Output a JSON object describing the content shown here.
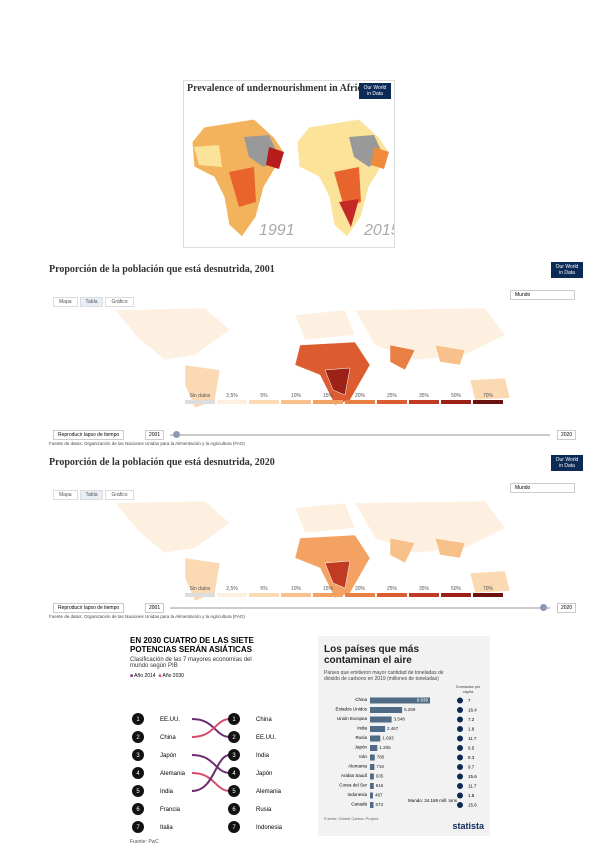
{
  "africa": {
    "title": "Prevalence of undernourishment in Africa",
    "logo": "Our World in Data",
    "years": [
      "1991",
      "2015"
    ]
  },
  "maps": [
    {
      "title": "Proporción de la población que está desnutrida, 2001",
      "logo": "Our World in Data",
      "tabs": [
        "Mapa",
        "Tabla",
        "Gráfico"
      ],
      "region": "Mundo",
      "legend": [
        "Sin datos",
        "2,5%",
        "5%",
        "10%",
        "15%",
        "20%",
        "25%",
        "35%",
        "50%",
        "70%"
      ],
      "play": "Reproducir lapso de tiempo",
      "start": "2001",
      "end": "2020",
      "source": "Fuente de datos: Organización de las Naciones Unidas para la Alimentación y la Agricultura (FAO)"
    },
    {
      "title": "Proporción de la población que está desnutrida, 2020",
      "logo": "Our World in Data",
      "tabs": [
        "Mapa",
        "Tabla",
        "Gráfico"
      ],
      "region": "Mundo",
      "legend": [
        "Sin datos",
        "2,5%",
        "5%",
        "10%",
        "15%",
        "20%",
        "25%",
        "35%",
        "50%",
        "70%"
      ],
      "play": "Reproducir lapso de tiempo",
      "start": "2001",
      "end": "2020",
      "source": "Fuente de datos: Organización de las Naciones Unidas para la Alimentación y la Agricultura (FAO)"
    }
  ],
  "powers": {
    "title": "EN 2030 CUATRO DE LAS SIETE POTENCIAS SERÁN ASIÁTICAS",
    "subtitle": "Clasificación de las 7 mayores economías del mundo según PIB",
    "legend": [
      "Año 2014",
      "Año 2030"
    ],
    "ranks": [
      1,
      2,
      3,
      4,
      5,
      6,
      7
    ],
    "left": [
      "EE.UU.",
      "China",
      "Japón",
      "Alemania",
      "India",
      "Francia",
      "Italia"
    ],
    "right": [
      "China",
      "EE.UU.",
      "India",
      "Japón",
      "Alemania",
      "Rusia",
      "Indonesia"
    ],
    "source": "Fuente: PwC"
  },
  "pollution": {
    "title": "Los países que más contaminan el aire",
    "subtitle": "Países que emitieron mayor cantidad de toneladas de dióxido de carbono en 2019 (millones de toneladas)",
    "per_capita_header": "Toneladas per cápita",
    "categories": [
      "China",
      "Estados Unidos",
      "Unión Europea",
      "India",
      "Rusia",
      "Japón",
      "Irán",
      "Alemania",
      "Arabia Saudí",
      "Corea del Sur",
      "Indonesia",
      "Canadá"
    ],
    "values": [
      9839,
      5269,
      3548,
      2467,
      1693,
      1205,
      780,
      719,
      635,
      616,
      487,
      573
    ],
    "value_labels": [
      "9.839",
      "5.269",
      "3.548",
      "2.467",
      "1.693",
      "1.205",
      "780",
      "719",
      "635",
      "616",
      "487",
      "573"
    ],
    "per_capita": [
      7.0,
      16.4,
      7.2,
      1.8,
      11.7,
      9.5,
      8.3,
      9.7,
      15.6,
      11.7,
      1.8,
      15.6
    ],
    "world_note": "Mundo: 34.169 mill. tons",
    "source": "Fuente: Global Carbon Project",
    "brand": "statista"
  }
}
